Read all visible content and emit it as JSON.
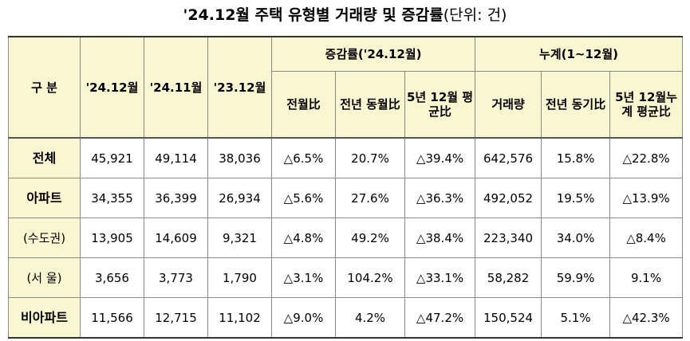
{
  "title": {
    "main": "'24.12월 주택 유형별 거래량 및 증감률",
    "unit": "(단위: 건)"
  },
  "headers": {
    "category": "구 분",
    "col_2412": "'24.12월",
    "col_2411": "'24.11월",
    "col_2312": "'23.12월",
    "group_change": "증감률('24.12월)",
    "group_cumulative": "누계(1~12월)",
    "sub_mom": "전월比",
    "sub_yoy": "전년 동월比",
    "sub_5yr": "5년 12월 평균比",
    "sub_volume": "거래량",
    "sub_cum_yoy": "전년 동기比",
    "sub_cum_5yr": "5년 12월누계 평균比"
  },
  "rows": [
    {
      "label": "전체",
      "v2412": "45,921",
      "v2411": "49,114",
      "v2312": "38,036",
      "mom": "△6.5%",
      "yoy": "20.7%",
      "avg5": "△39.4%",
      "cum_vol": "642,576",
      "cum_yoy": "15.8%",
      "cum_avg5": "△22.8%"
    },
    {
      "label": "아파트",
      "v2412": "34,355",
      "v2411": "36,399",
      "v2312": "26,934",
      "mom": "△5.6%",
      "yoy": "27.6%",
      "avg5": "△36.3%",
      "cum_vol": "492,052",
      "cum_yoy": "19.5%",
      "cum_avg5": "△13.9%"
    },
    {
      "label": "(수도권)",
      "v2412": "13,905",
      "v2411": "14,609",
      "v2312": "9,321",
      "mom": "△4.8%",
      "yoy": "49.2%",
      "avg5": "△38.4%",
      "cum_vol": "223,340",
      "cum_yoy": "34.0%",
      "cum_avg5": "△8.4%"
    },
    {
      "label": "(서 울)",
      "v2412": "3,656",
      "v2411": "3,773",
      "v2312": "1,790",
      "mom": "△3.1%",
      "yoy": "104.2%",
      "avg5": "△33.1%",
      "cum_vol": "58,282",
      "cum_yoy": "59.9%",
      "cum_avg5": "9.1%"
    },
    {
      "label": "비아파트",
      "v2412": "11,566",
      "v2411": "12,715",
      "v2312": "11,102",
      "mom": "△9.0%",
      "yoy": "4.2%",
      "avg5": "△47.2%",
      "cum_vol": "150,524",
      "cum_yoy": "5.1%",
      "cum_avg5": "△42.3%"
    }
  ]
}
